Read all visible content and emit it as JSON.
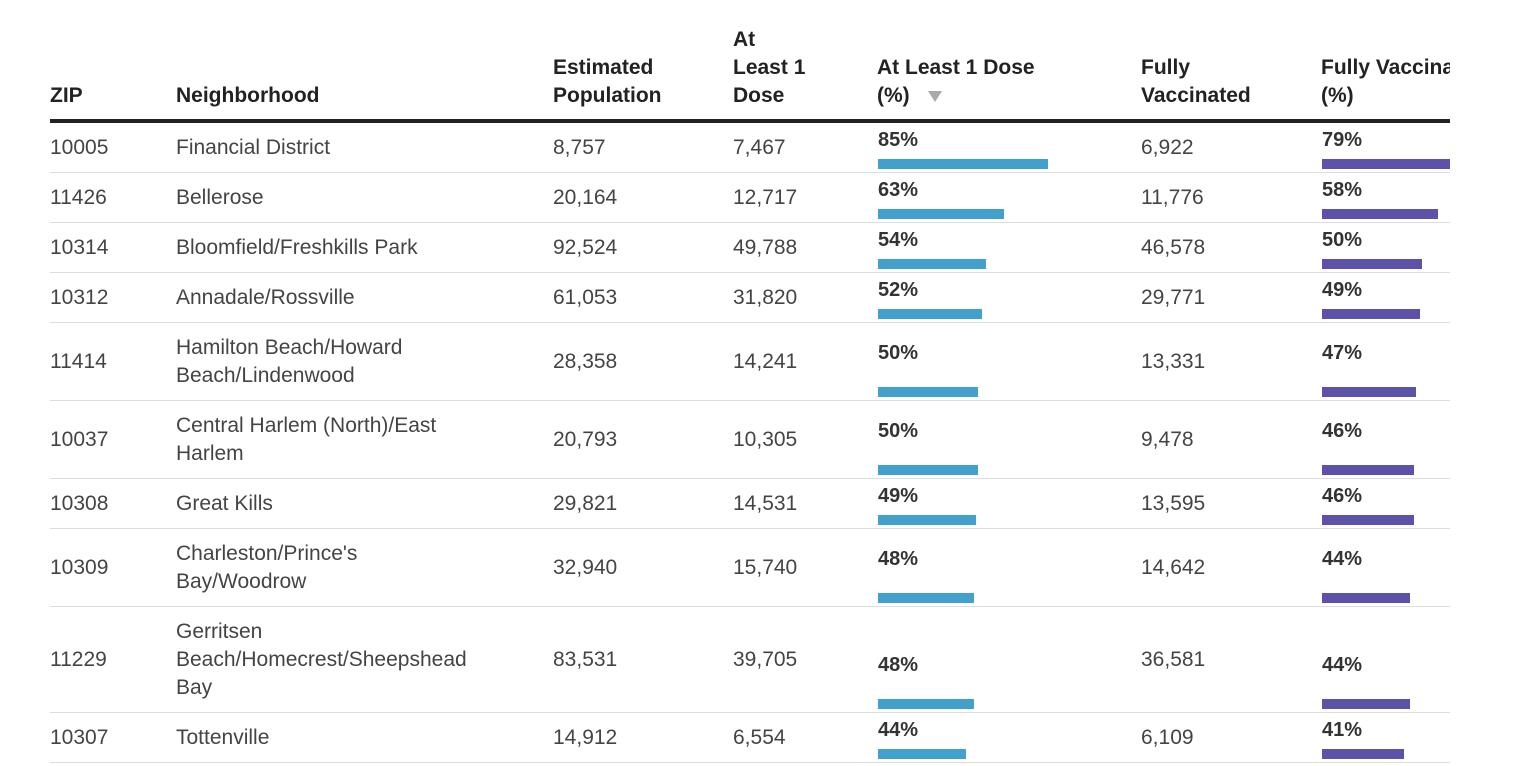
{
  "table": {
    "columns": {
      "zip": "ZIP",
      "neighborhood": "Neighborhood",
      "population": [
        "Estimated",
        "Population"
      ],
      "dose": [
        "At",
        "Least 1",
        "Dose"
      ],
      "dose_pct": [
        "At Least 1 Dose",
        "(%)"
      ],
      "full": [
        "Fully",
        "Vaccinated"
      ],
      "full_pct": [
        "Fully Vaccinated",
        "(%)"
      ]
    },
    "sorted_by": "At Least 1 Dose (%)",
    "sort_direction": "descending",
    "bar_colors": {
      "dose": "#41a0cc",
      "full": "#5c53a8"
    },
    "rows": [
      {
        "zip": "10005",
        "neighborhood": [
          "Financial District"
        ],
        "population": "8,757",
        "dose": "7,467",
        "dose_pct": "85%",
        "full": "6,922",
        "full_pct": "79%"
      },
      {
        "zip": "11426",
        "neighborhood": [
          "Bellerose"
        ],
        "population": "20,164",
        "dose": "12,717",
        "dose_pct": "63%",
        "full": "11,776",
        "full_pct": "58%"
      },
      {
        "zip": "10314",
        "neighborhood": [
          "Bloomfield/Freshkills Park"
        ],
        "population": "92,524",
        "dose": "49,788",
        "dose_pct": "54%",
        "full": "46,578",
        "full_pct": "50%"
      },
      {
        "zip": "10312",
        "neighborhood": [
          "Annadale/Rossville"
        ],
        "population": "61,053",
        "dose": "31,820",
        "dose_pct": "52%",
        "full": "29,771",
        "full_pct": "49%"
      },
      {
        "zip": "11414",
        "neighborhood": [
          "Hamilton Beach/Howard",
          "Beach/Lindenwood"
        ],
        "population": "28,358",
        "dose": "14,241",
        "dose_pct": "50%",
        "full": "13,331",
        "full_pct": "47%"
      },
      {
        "zip": "10037",
        "neighborhood": [
          "Central Harlem (North)/East",
          "Harlem"
        ],
        "population": "20,793",
        "dose": "10,305",
        "dose_pct": "50%",
        "full": "9,478",
        "full_pct": "46%"
      },
      {
        "zip": "10308",
        "neighborhood": [
          "Great Kills"
        ],
        "population": "29,821",
        "dose": "14,531",
        "dose_pct": "49%",
        "full": "13,595",
        "full_pct": "46%"
      },
      {
        "zip": "10309",
        "neighborhood": [
          "Charleston/Prince's",
          "Bay/Woodrow"
        ],
        "population": "32,940",
        "dose": "15,740",
        "dose_pct": "48%",
        "full": "14,642",
        "full_pct": "44%"
      },
      {
        "zip": "11229",
        "neighborhood": [
          "Gerritsen",
          "Beach/Homecrest/Sheepshead",
          "Bay"
        ],
        "population": "83,531",
        "dose": "39,705",
        "dose_pct": "48%",
        "full": "36,581",
        "full_pct": "44%"
      },
      {
        "zip": "10307",
        "neighborhood": [
          "Tottenville"
        ],
        "population": "14,912",
        "dose": "6,554",
        "dose_pct": "44%",
        "full": "6,109",
        "full_pct": "41%"
      }
    ]
  }
}
